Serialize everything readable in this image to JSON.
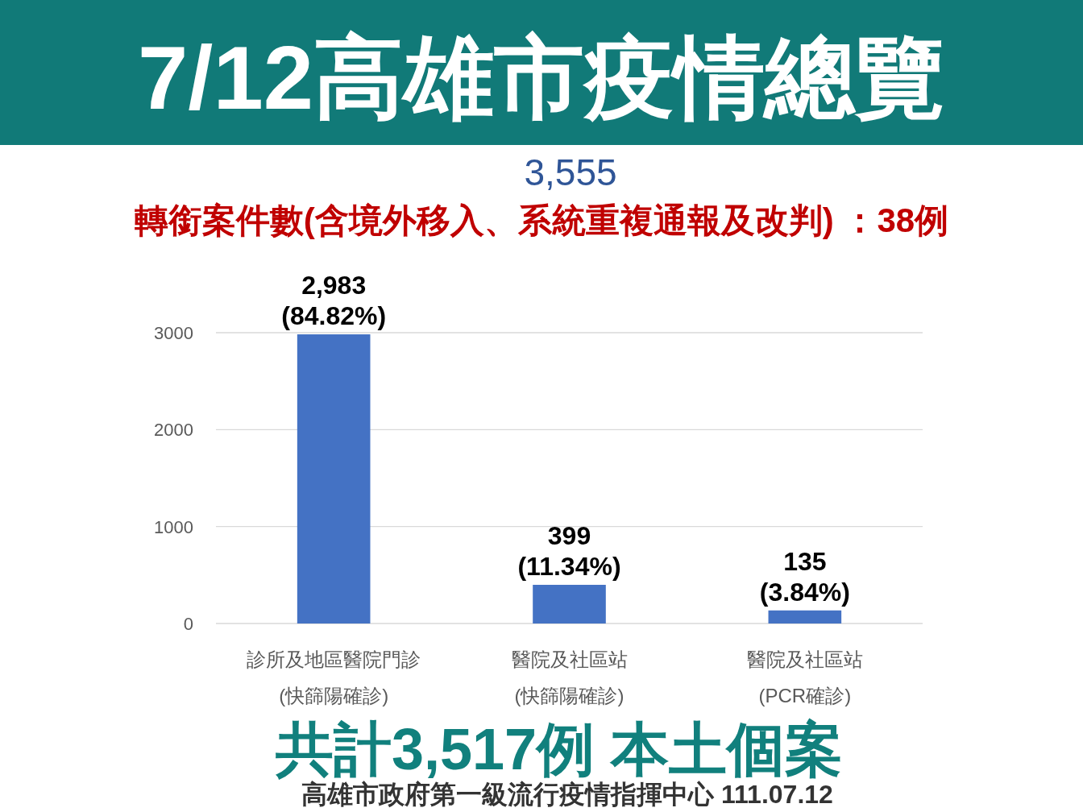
{
  "chart_data": {
    "type": "bar",
    "title": "7/12高雄市疫情總覽",
    "annotations": [
      "3,555",
      "轉銜案件數(含境外移入、系統重複通報及改判) ：38例",
      "共計3,517例 本土個案",
      "高雄市政府第一級流行疫情指揮中心 111.07.12"
    ],
    "categories": [
      "診所及地區醫院門診\n(快篩陽確診)",
      "醫院及社區站\n(快篩陽確診)",
      "醫院及社區站\n(PCR確診)"
    ],
    "values": [
      2983,
      399,
      135
    ],
    "value_labels": [
      "2,983\n(84.82%)",
      "399\n(11.34%)",
      "135\n(3.84%)"
    ],
    "color": "#4472c4",
    "ylim": [
      0,
      3000
    ],
    "yticks": [
      0,
      1000,
      2000,
      3000
    ],
    "grid": "y"
  }
}
